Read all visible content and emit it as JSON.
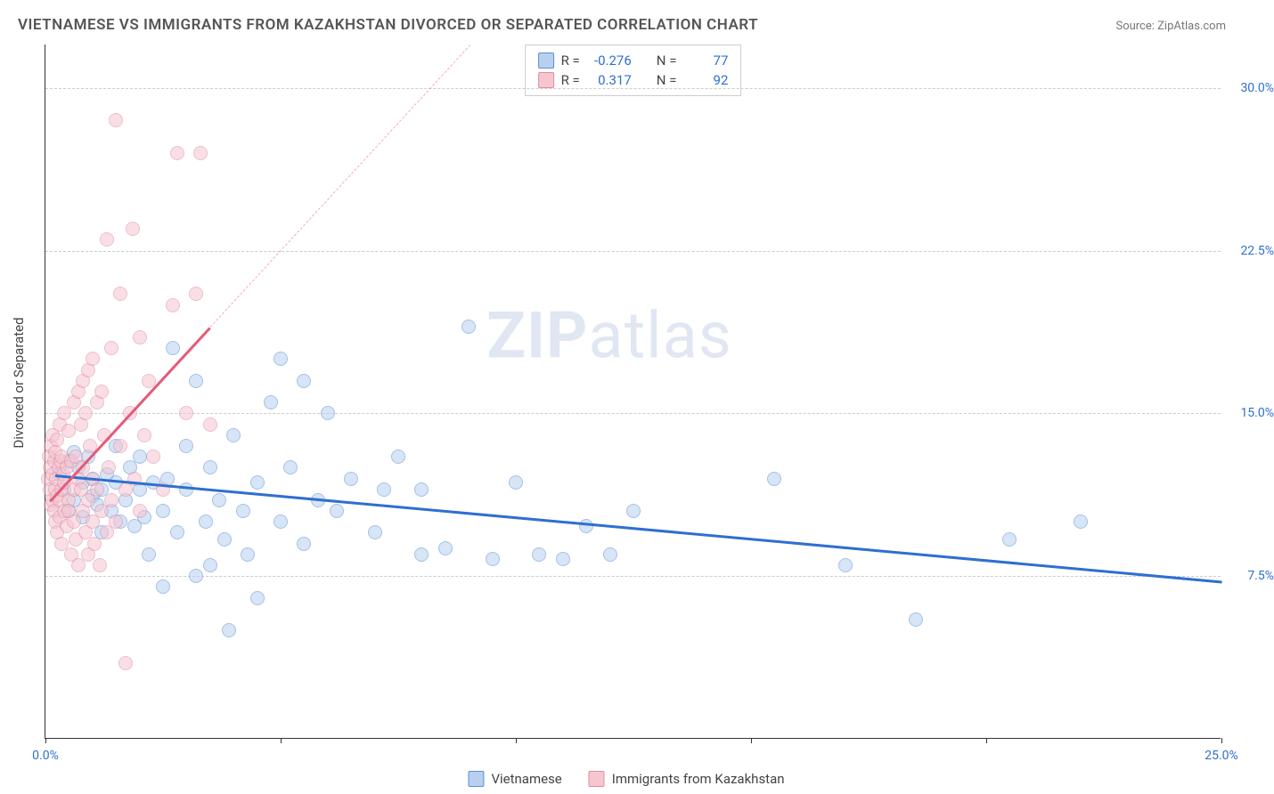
{
  "title": "VIETNAMESE VS IMMIGRANTS FROM KAZAKHSTAN DIVORCED OR SEPARATED CORRELATION CHART",
  "source": "Source: ZipAtlas.com",
  "ylabel": "Divorced or Separated",
  "watermark_bold": "ZIP",
  "watermark_rest": "atlas",
  "chart": {
    "type": "scatter",
    "xlim": [
      0,
      25
    ],
    "ylim": [
      0,
      32
    ],
    "x_ticks": [
      0,
      5,
      10,
      15,
      20,
      25
    ],
    "x_tick_labels": [
      "0.0%",
      "",
      "",
      "",
      "",
      "25.0%"
    ],
    "y_ticks": [
      7.5,
      15.0,
      22.5,
      30.0
    ],
    "y_tick_labels": [
      "7.5%",
      "15.0%",
      "22.5%",
      "30.0%"
    ],
    "background_color": "#ffffff",
    "grid_color": "#cccccc",
    "axis_color": "#333333",
    "tick_label_color": "#2f6fd0",
    "marker_radius": 8,
    "marker_opacity": 0.55
  },
  "series": [
    {
      "name": "Vietnamese",
      "fill": "#b8d0f0",
      "stroke": "#5a8fd6",
      "r_label": "R =",
      "r_value": "-0.276",
      "n_label": "N =",
      "n_value": "77",
      "trend": {
        "x1": 0.2,
        "y1": 12.2,
        "x2": 25,
        "y2": 7.3,
        "color": "#2f6fd0",
        "dash_to_x": 25
      },
      "points": [
        [
          0.3,
          12.2
        ],
        [
          0.4,
          11.5
        ],
        [
          0.5,
          12.8
        ],
        [
          0.5,
          10.5
        ],
        [
          0.6,
          13.2
        ],
        [
          0.6,
          11.0
        ],
        [
          0.7,
          12.5
        ],
        [
          0.8,
          11.8
        ],
        [
          0.8,
          10.2
        ],
        [
          0.9,
          13.0
        ],
        [
          1.0,
          11.2
        ],
        [
          1.0,
          12.0
        ],
        [
          1.1,
          10.8
        ],
        [
          1.2,
          11.5
        ],
        [
          1.2,
          9.5
        ],
        [
          1.3,
          12.2
        ],
        [
          1.4,
          10.5
        ],
        [
          1.5,
          11.8
        ],
        [
          1.5,
          13.5
        ],
        [
          1.6,
          10.0
        ],
        [
          1.7,
          11.0
        ],
        [
          1.8,
          12.5
        ],
        [
          1.9,
          9.8
        ],
        [
          2.0,
          11.5
        ],
        [
          2.0,
          13.0
        ],
        [
          2.1,
          10.2
        ],
        [
          2.2,
          8.5
        ],
        [
          2.3,
          11.8
        ],
        [
          2.5,
          10.5
        ],
        [
          2.5,
          7.0
        ],
        [
          2.6,
          12.0
        ],
        [
          2.7,
          18.0
        ],
        [
          2.8,
          9.5
        ],
        [
          3.0,
          11.5
        ],
        [
          3.0,
          13.5
        ],
        [
          3.2,
          7.5
        ],
        [
          3.2,
          16.5
        ],
        [
          3.4,
          10.0
        ],
        [
          3.5,
          8.0
        ],
        [
          3.5,
          12.5
        ],
        [
          3.7,
          11.0
        ],
        [
          3.8,
          9.2
        ],
        [
          3.9,
          5.0
        ],
        [
          4.0,
          14.0
        ],
        [
          4.2,
          10.5
        ],
        [
          4.3,
          8.5
        ],
        [
          4.5,
          6.5
        ],
        [
          4.5,
          11.8
        ],
        [
          4.8,
          15.5
        ],
        [
          5.0,
          10.0
        ],
        [
          5.0,
          17.5
        ],
        [
          5.2,
          12.5
        ],
        [
          5.5,
          9.0
        ],
        [
          5.5,
          16.5
        ],
        [
          5.8,
          11.0
        ],
        [
          6.0,
          15.0
        ],
        [
          6.2,
          10.5
        ],
        [
          6.5,
          12.0
        ],
        [
          7.0,
          9.5
        ],
        [
          7.2,
          11.5
        ],
        [
          7.5,
          13.0
        ],
        [
          8.0,
          11.5
        ],
        [
          8.0,
          8.5
        ],
        [
          8.5,
          8.8
        ],
        [
          9.0,
          19.0
        ],
        [
          9.5,
          8.3
        ],
        [
          10.0,
          11.8
        ],
        [
          10.5,
          8.5
        ],
        [
          11.0,
          8.3
        ],
        [
          11.5,
          9.8
        ],
        [
          12.0,
          8.5
        ],
        [
          12.5,
          10.5
        ],
        [
          15.5,
          12.0
        ],
        [
          17.0,
          8.0
        ],
        [
          18.5,
          5.5
        ],
        [
          20.5,
          9.2
        ],
        [
          22.0,
          10.0
        ]
      ]
    },
    {
      "name": "Immigrants from Kazakhstan",
      "fill": "#f5c6d0",
      "stroke": "#e08aa0",
      "r_label": "R =",
      "r_value": "0.317",
      "n_label": "N =",
      "n_value": "92",
      "trend": {
        "x1": 0.1,
        "y1": 11.0,
        "x2": 3.5,
        "y2": 19.0,
        "color": "#e55a7a",
        "dash_to_x": 12.0
      },
      "points": [
        [
          0.05,
          12.0
        ],
        [
          0.08,
          13.0
        ],
        [
          0.1,
          11.5
        ],
        [
          0.1,
          12.5
        ],
        [
          0.12,
          10.8
        ],
        [
          0.12,
          13.5
        ],
        [
          0.15,
          11.0
        ],
        [
          0.15,
          12.2
        ],
        [
          0.15,
          14.0
        ],
        [
          0.18,
          10.5
        ],
        [
          0.18,
          12.8
        ],
        [
          0.2,
          11.5
        ],
        [
          0.2,
          13.2
        ],
        [
          0.2,
          10.0
        ],
        [
          0.22,
          12.0
        ],
        [
          0.25,
          11.2
        ],
        [
          0.25,
          13.8
        ],
        [
          0.25,
          9.5
        ],
        [
          0.28,
          12.5
        ],
        [
          0.3,
          11.0
        ],
        [
          0.3,
          14.5
        ],
        [
          0.3,
          10.2
        ],
        [
          0.32,
          12.8
        ],
        [
          0.35,
          11.5
        ],
        [
          0.35,
          13.0
        ],
        [
          0.35,
          9.0
        ],
        [
          0.38,
          12.2
        ],
        [
          0.4,
          10.5
        ],
        [
          0.4,
          15.0
        ],
        [
          0.4,
          11.8
        ],
        [
          0.45,
          12.5
        ],
        [
          0.45,
          9.8
        ],
        [
          0.5,
          11.0
        ],
        [
          0.5,
          14.2
        ],
        [
          0.5,
          10.5
        ],
        [
          0.55,
          12.8
        ],
        [
          0.55,
          8.5
        ],
        [
          0.6,
          11.5
        ],
        [
          0.6,
          15.5
        ],
        [
          0.6,
          10.0
        ],
        [
          0.65,
          13.0
        ],
        [
          0.65,
          9.2
        ],
        [
          0.7,
          12.0
        ],
        [
          0.7,
          16.0
        ],
        [
          0.7,
          8.0
        ],
        [
          0.75,
          11.5
        ],
        [
          0.75,
          14.5
        ],
        [
          0.8,
          10.5
        ],
        [
          0.8,
          16.5
        ],
        [
          0.8,
          12.5
        ],
        [
          0.85,
          9.5
        ],
        [
          0.85,
          15.0
        ],
        [
          0.9,
          11.0
        ],
        [
          0.9,
          17.0
        ],
        [
          0.9,
          8.5
        ],
        [
          0.95,
          13.5
        ],
        [
          1.0,
          10.0
        ],
        [
          1.0,
          17.5
        ],
        [
          1.0,
          12.0
        ],
        [
          1.05,
          9.0
        ],
        [
          1.1,
          15.5
        ],
        [
          1.1,
          11.5
        ],
        [
          1.15,
          8.0
        ],
        [
          1.2,
          16.0
        ],
        [
          1.2,
          10.5
        ],
        [
          1.25,
          14.0
        ],
        [
          1.3,
          9.5
        ],
        [
          1.3,
          23.0
        ],
        [
          1.35,
          12.5
        ],
        [
          1.4,
          11.0
        ],
        [
          1.4,
          18.0
        ],
        [
          1.5,
          10.0
        ],
        [
          1.5,
          28.5
        ],
        [
          1.6,
          13.5
        ],
        [
          1.6,
          20.5
        ],
        [
          1.7,
          11.5
        ],
        [
          1.7,
          3.5
        ],
        [
          1.8,
          15.0
        ],
        [
          1.85,
          23.5
        ],
        [
          1.9,
          12.0
        ],
        [
          2.0,
          18.5
        ],
        [
          2.0,
          10.5
        ],
        [
          2.1,
          14.0
        ],
        [
          2.2,
          16.5
        ],
        [
          2.3,
          13.0
        ],
        [
          2.5,
          11.5
        ],
        [
          2.7,
          20.0
        ],
        [
          2.8,
          27.0
        ],
        [
          3.0,
          15.0
        ],
        [
          3.2,
          20.5
        ],
        [
          3.3,
          27.0
        ],
        [
          3.5,
          14.5
        ]
      ]
    }
  ],
  "legend_items": [
    "Vietnamese",
    "Immigrants from Kazakhstan"
  ]
}
